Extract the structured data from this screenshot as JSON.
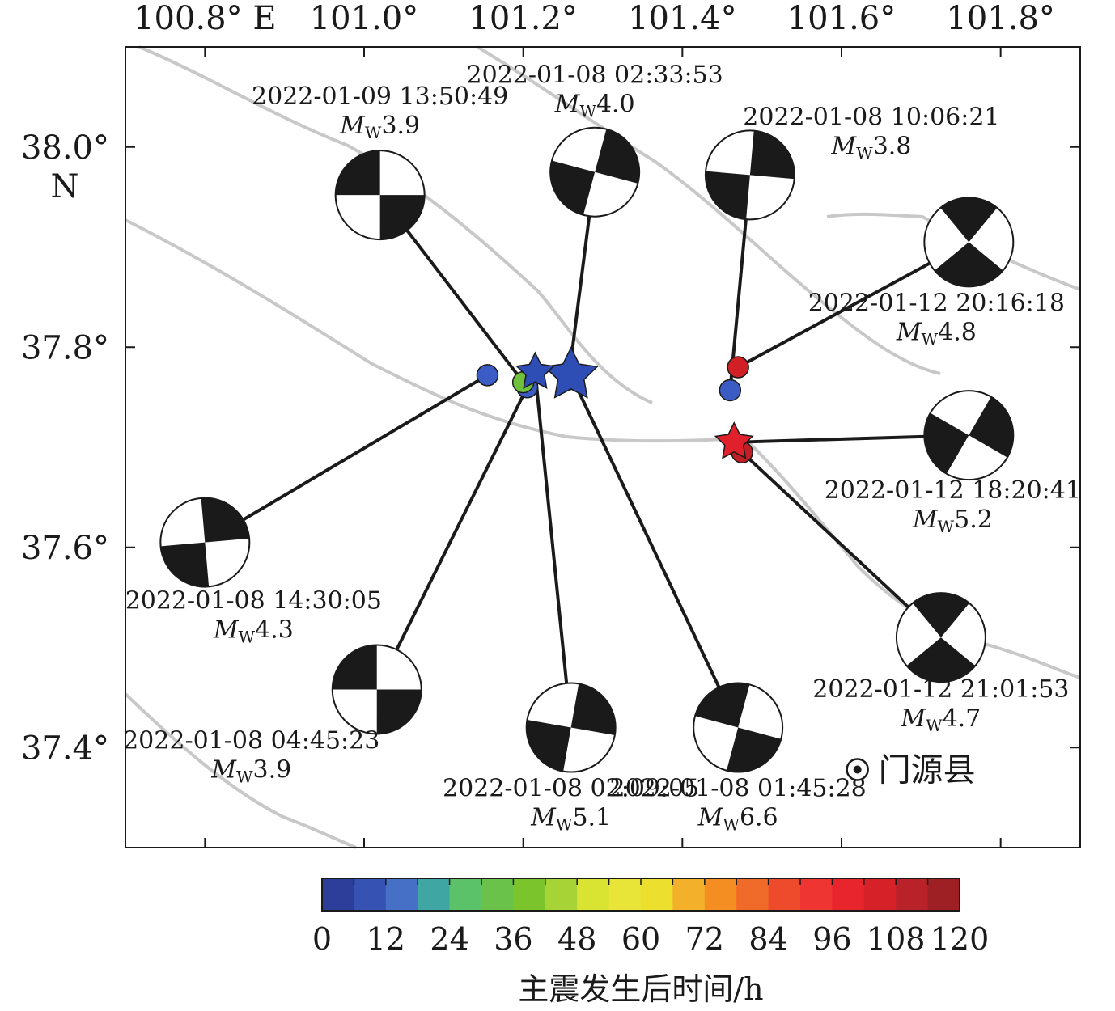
{
  "map": {
    "lon_ticks": [
      {
        "value": 100.8,
        "label": "100.8° E"
      },
      {
        "value": 101.0,
        "label": "101.0°"
      },
      {
        "value": 101.2,
        "label": "101.2°"
      },
      {
        "value": 101.4,
        "label": "101.4°"
      },
      {
        "value": 101.6,
        "label": "101.6°"
      },
      {
        "value": 101.8,
        "label": "101.8°"
      }
    ],
    "lat_ticks": [
      {
        "value": 38.0,
        "label": "38.0°"
      },
      {
        "value": 37.8,
        "label": "37.8°"
      },
      {
        "value": 37.6,
        "label": "37.6°"
      },
      {
        "value": 37.4,
        "label": "37.4°"
      }
    ],
    "lat_hemisphere": "N",
    "lon_range": [
      100.7,
      101.9
    ],
    "lat_range": [
      37.3,
      38.1
    ],
    "town": {
      "name": "门源县",
      "lon": 101.62,
      "lat": 37.378
    }
  },
  "events": [
    {
      "time": "2022-01-08 01:45:28",
      "mag_prefix": "M",
      "mag_sub": "W",
      "mag_value": "6.6",
      "lon": 101.26,
      "lat": 37.772,
      "hours": 0,
      "symbol": "star",
      "color": "#2E4DB5",
      "beach": {
        "lon": 101.47,
        "lat": 37.42,
        "strike": 15,
        "mech": "ss"
      }
    },
    {
      "time": "2022-01-08 02:09:05",
      "mag_prefix": "M",
      "mag_sub": "W",
      "mag_value": "5.1",
      "lon": 101.215,
      "lat": 37.775,
      "hours": 0.4,
      "symbol": "star",
      "color": "#2E4DB5",
      "beach": {
        "lon": 101.26,
        "lat": 37.42,
        "strike": 100,
        "mech": "ss"
      }
    },
    {
      "time": "2022-01-08 02:33:53",
      "mag_prefix": "M",
      "mag_sub": "W",
      "mag_value": "4.0",
      "lon": 101.257,
      "lat": 37.768,
      "hours": 0.8,
      "symbol": "circle",
      "color": "#3B5CC4",
      "beach": {
        "lon": 101.29,
        "lat": 37.975,
        "strike": 105,
        "mech": "ss"
      }
    },
    {
      "time": "2022-01-08 04:45:23",
      "mag_prefix": "M",
      "mag_sub": "W",
      "mag_value": "3.9",
      "lon": 101.205,
      "lat": 37.76,
      "hours": 3,
      "symbol": "circle",
      "color": "#3B5CC4",
      "beach": {
        "lon": 101.016,
        "lat": 37.458,
        "strike": 0,
        "mech": "ss"
      }
    },
    {
      "time": "2022-01-08 10:06:21",
      "mag_prefix": "M",
      "mag_sub": "W",
      "mag_value": "3.8",
      "lon": 101.46,
      "lat": 37.757,
      "hours": 8.3,
      "symbol": "circle",
      "color": "#3B5CC4",
      "beach": {
        "lon": 101.485,
        "lat": 37.972,
        "strike": 95,
        "mech": "ss"
      }
    },
    {
      "time": "2022-01-08 14:30:05",
      "mag_prefix": "M",
      "mag_sub": "W",
      "mag_value": "4.3",
      "lon": 101.155,
      "lat": 37.772,
      "hours": 12.7,
      "symbol": "circle",
      "color": "#3B5CC4",
      "beach": {
        "lon": 100.8,
        "lat": 37.605,
        "strike": 85,
        "mech": "ss"
      }
    },
    {
      "time": "2022-01-09 13:50:49",
      "mag_prefix": "M",
      "mag_sub": "W",
      "mag_value": "3.9",
      "lon": 101.2,
      "lat": 37.765,
      "hours": 36,
      "symbol": "circle",
      "color": "#6FC13C",
      "beach": {
        "lon": 101.02,
        "lat": 37.952,
        "strike": 0,
        "mech": "ss"
      }
    },
    {
      "time": "2022-01-12 18:20:41",
      "mag_prefix": "M",
      "mag_sub": "W",
      "mag_value": "5.2",
      "lon": 101.465,
      "lat": 37.705,
      "hours": 112.6,
      "symbol": "star",
      "color": "#E0202A",
      "beach": {
        "lon": 101.76,
        "lat": 37.712,
        "strike": 120,
        "mech": "ss"
      }
    },
    {
      "time": "2022-01-12 20:16:18",
      "mag_prefix": "M",
      "mag_sub": "W",
      "mag_value": "4.8",
      "lon": 101.47,
      "lat": 37.78,
      "hours": 114.5,
      "symbol": "circle",
      "color": "#D02025",
      "beach": {
        "lon": 101.76,
        "lat": 37.905,
        "strike": 0,
        "mech": "tf"
      }
    },
    {
      "time": "2022-01-12 21:01:53",
      "mag_prefix": "M",
      "mag_sub": "W",
      "mag_value": "4.7",
      "lon": 101.475,
      "lat": 37.695,
      "hours": 115.3,
      "symbol": "circle",
      "color": "#C02025",
      "beach": {
        "lon": 101.725,
        "lat": 37.51,
        "strike": 0,
        "mech": "tf"
      }
    }
  ],
  "colorbar": {
    "min": 0,
    "max": 120,
    "tick_labels": [
      "0",
      "12",
      "24",
      "36",
      "48",
      "60",
      "72",
      "84",
      "96",
      "108",
      "120"
    ],
    "title": "主震发生后时间/h",
    "colors": [
      "#2D3E9A",
      "#3652B2",
      "#4670C6",
      "#40A6A3",
      "#5BC26A",
      "#6BC24A",
      "#7BC42C",
      "#A8D336",
      "#D9E432",
      "#E8E538",
      "#EDDF2D",
      "#F3B12B",
      "#F48E23",
      "#F06A2A",
      "#EE4A2C",
      "#EE3531",
      "#E8252D",
      "#D62128",
      "#B92228",
      "#9E1F24"
    ]
  }
}
